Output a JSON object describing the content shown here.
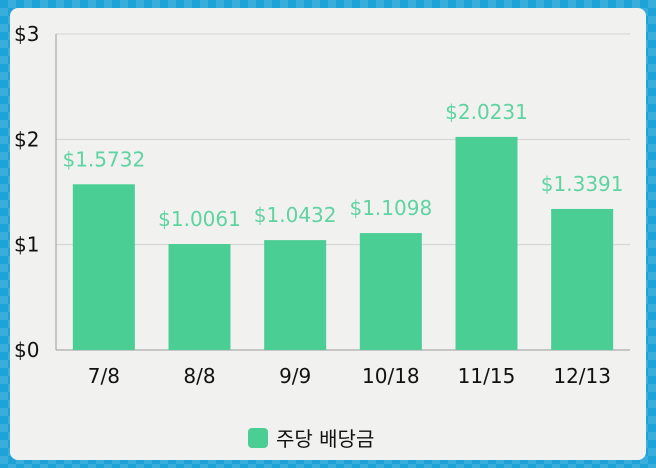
{
  "chart_data": {
    "type": "bar",
    "categories": [
      "7/8",
      "8/8",
      "9/9",
      "10/18",
      "11/15",
      "12/13"
    ],
    "series": [
      {
        "name": "주당 배당금",
        "values": [
          1.5732,
          1.0061,
          1.0432,
          1.1098,
          2.0231,
          1.3391
        ],
        "labels": [
          "$1.5732",
          "$1.0061",
          "$1.0432",
          "$1.1098",
          "$2.0231",
          "$1.3391"
        ]
      }
    ],
    "ylim": [
      0,
      3
    ],
    "yticks": [
      {
        "value": 0,
        "label": "$0"
      },
      {
        "value": 1,
        "label": "$1"
      },
      {
        "value": 2,
        "label": "$2"
      },
      {
        "value": 3,
        "label": "$3"
      }
    ],
    "grid": true,
    "legend_position": "bottom-center",
    "bar_color": "#4bce93",
    "label_color": "#5fd3a0"
  }
}
